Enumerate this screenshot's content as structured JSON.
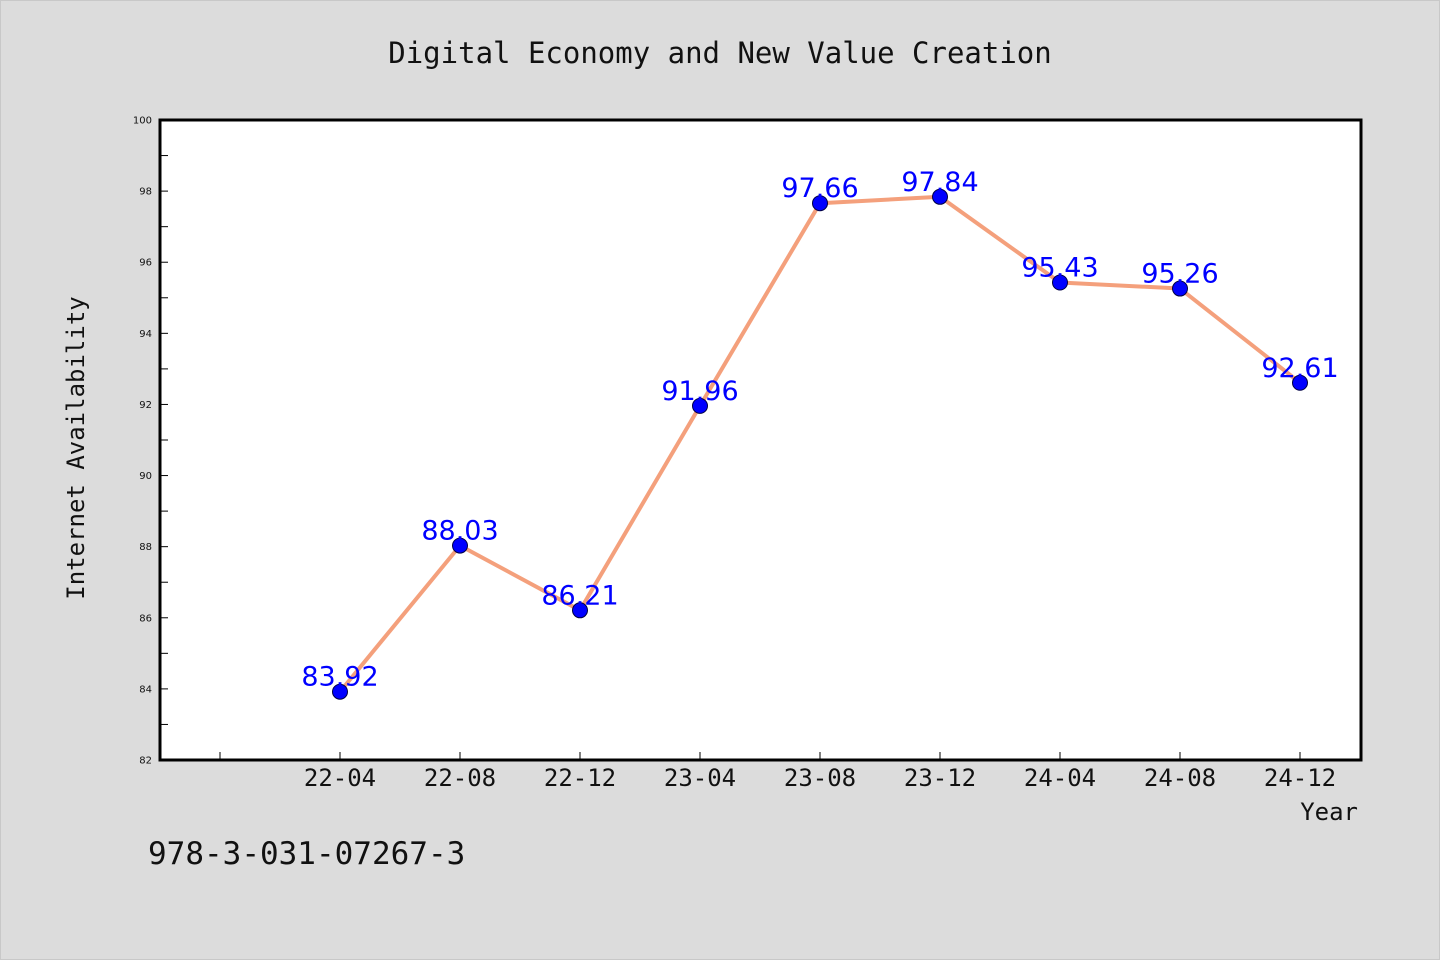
{
  "page": {
    "background": "#dcdcdc",
    "isbn_text": "978-3-031-07267-3"
  },
  "chart_data": {
    "type": "line",
    "title": "Digital Economy and New Value Creation",
    "xlabel": "Year",
    "ylabel": "Internet Availability",
    "categories": [
      "22-04",
      "22-08",
      "22-12",
      "23-04",
      "23-08",
      "23-12",
      "24-04",
      "24-08",
      "24-12"
    ],
    "series": [
      {
        "values": [
          83.92,
          88.03,
          86.21,
          91.96,
          97.66,
          97.84,
          95.43,
          95.26,
          92.61
        ],
        "line_color": "#f4a07c",
        "marker_color": "#0000ff",
        "label_color": "#0000ff"
      }
    ],
    "ylim": [
      82,
      100
    ],
    "yticks": [
      82,
      84,
      86,
      88,
      90,
      92,
      94,
      96,
      98,
      100
    ],
    "grid": false,
    "legend": "none",
    "plot_background": "#ffffff"
  }
}
